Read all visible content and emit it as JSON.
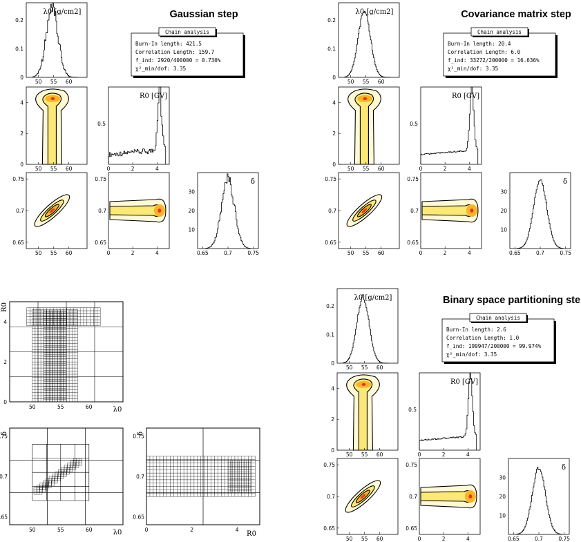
{
  "chart_data": [
    {
      "type": "corner_plot",
      "title": "Gaussian step",
      "params": [
        "λ0",
        "R0",
        "δ"
      ],
      "param_labels": [
        "λ0 [g/cm2]",
        "R0 [GV]",
        "δ"
      ],
      "ranges": {
        "λ0": [
          46,
          66
        ],
        "R0": [
          0,
          5
        ],
        "δ": [
          0.64,
          0.76
        ]
      },
      "ticks": {
        "λ0": [
          "50",
          "55",
          "60"
        ],
        "R0": [
          "0",
          "2",
          "4"
        ],
        "δ_x": [
          "0.65",
          "0.7",
          "0.75"
        ],
        "λ0_hist_y": [
          "0",
          "0.1",
          "0.2"
        ],
        "R0_hist_y": [
          "0.5"
        ],
        "δ_hist_y": [
          "10",
          "20",
          "30"
        ]
      },
      "modes": {
        "λ0": 54.5,
        "R0": 4.2,
        "δ": 0.7
      },
      "histogram_peaks": {
        "λ0": 0.23,
        "R0": 0.82,
        "δ": 35
      },
      "chain_analysis": {
        "header": "Chain analysis",
        "lines": [
          "Burn-In length: 421.5",
          "Correlation Length: 159.7",
          "f_ind: 2920/400000 = 0.730%",
          "χ²_min/dof: 3.35"
        ]
      }
    },
    {
      "type": "corner_plot",
      "title": "Covariance matrix step",
      "params": [
        "λ0",
        "R0",
        "δ"
      ],
      "param_labels": [
        "λ0 [g/cm2]",
        "R0 [GV]",
        "δ"
      ],
      "ranges": {
        "λ0": [
          46,
          66
        ],
        "R0": [
          0,
          5
        ],
        "δ": [
          0.64,
          0.76
        ]
      },
      "ticks": {
        "λ0": [
          "50",
          "55",
          "60"
        ],
        "R0": [
          "0",
          "2",
          "4"
        ],
        "δ_x": [
          "0.65",
          "0.7",
          "0.75"
        ],
        "λ0_hist_y": [
          "0",
          "0.1",
          "0.2"
        ],
        "R0_hist_y": [
          "0.5"
        ],
        "δ_hist_y": [
          "10",
          "20",
          "30"
        ]
      },
      "modes": {
        "λ0": 54.5,
        "R0": 4.2,
        "δ": 0.7
      },
      "histogram_peaks": {
        "λ0": 0.23,
        "R0": 0.78,
        "δ": 36
      },
      "chain_analysis": {
        "header": "Chain analysis",
        "lines": [
          "Burn-In length: 20.4",
          "Correlation Length: 6.0",
          "f_ind: 33272/200000 = 16.636%",
          "χ²_min/dof: 3.35"
        ]
      }
    },
    {
      "type": "partition_grid",
      "title": "",
      "params": [
        "λ0",
        "R0",
        "δ"
      ],
      "axis_labels": {
        "λ0": "λ0",
        "R0": "R0",
        "δ": "δ"
      },
      "ranges": {
        "λ0": [
          46,
          66
        ],
        "R0": [
          0,
          5
        ],
        "δ": [
          0.64,
          0.76
        ]
      },
      "ticks": {
        "λ0": [
          "50",
          "55",
          "60"
        ],
        "R0_y": [
          "0",
          "2",
          "4"
        ],
        "R0_x": [
          "0",
          "2",
          "4"
        ],
        "δ_y": [
          "0.65",
          "0.7",
          "0.75"
        ]
      },
      "panels": [
        "λ0 vs R0",
        "λ0 vs δ",
        "R0 vs δ"
      ]
    },
    {
      "type": "corner_plot",
      "title": "Binary space partitioning step",
      "params": [
        "λ0",
        "R0",
        "δ"
      ],
      "param_labels": [
        "λ0 [g/cm2]",
        "R0 [GV]",
        "δ"
      ],
      "ranges": {
        "λ0": [
          46,
          66
        ],
        "R0": [
          0,
          5
        ],
        "δ": [
          0.64,
          0.76
        ]
      },
      "ticks": {
        "λ0": [
          "50",
          "55",
          "60"
        ],
        "R0": [
          "0",
          "2",
          "4"
        ],
        "δ_x": [
          "0.65",
          "0.7",
          "0.75"
        ],
        "λ0_hist_y": [
          "0",
          "0.1",
          "0.2"
        ],
        "R0_hist_y": [
          "0.5"
        ],
        "δ_hist_y": [
          "10",
          "20",
          "30"
        ]
      },
      "modes": {
        "λ0": 54.5,
        "R0": 4.2,
        "δ": 0.7
      },
      "histogram_peaks": {
        "λ0": 0.23,
        "R0": 0.8,
        "δ": 35
      },
      "chain_analysis": {
        "header": "Chain analysis",
        "lines": [
          "Burn-In length: 2.6",
          "Correlation Length: 1.0",
          "f_ind: 199947/200000 = 99.974%",
          "χ²_min/dof: 3.35"
        ]
      }
    }
  ],
  "colors": {
    "contour_outer": "#fff9d6",
    "contour_mid": "#fbe877",
    "contour_inner": "#f6b42a",
    "contour_core": "#e03a1a",
    "line": "#000000"
  }
}
